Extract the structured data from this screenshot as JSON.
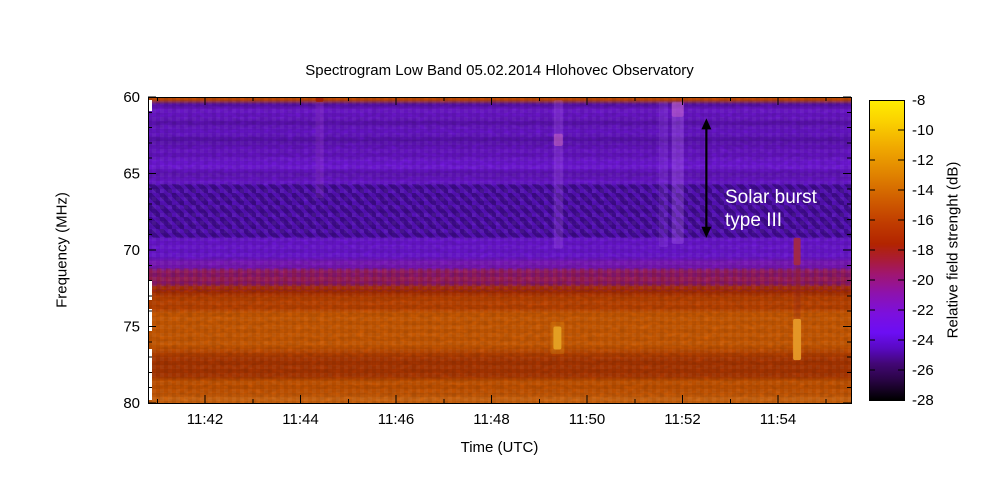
{
  "chart_data": {
    "type": "heatmap",
    "title": "Spectrogram Low Band 05.02.2014 Hlohovec Observatory",
    "xlabel": "Time (UTC)",
    "ylabel": "Frequency (MHz)",
    "colorbar_label": "Relative field strenght (dB)",
    "x_ticks": [
      "11:42",
      "11:44",
      "11:46",
      "11:48",
      "11:50",
      "11:52",
      "11:54"
    ],
    "x_minor_tick_minutes": 1,
    "x_range_utc": [
      "11:40.8",
      "11:55.5"
    ],
    "y_ticks": [
      "60",
      "65",
      "70",
      "75",
      "80"
    ],
    "y_minor_tick_mhz": 1,
    "y_range_mhz": [
      60,
      80
    ],
    "y_orientation": "60 MHz at top, 80 MHz at bottom",
    "colorbar_ticks": [
      "-8",
      "-10",
      "-12",
      "-14",
      "-16",
      "-18",
      "-20",
      "-22",
      "-24",
      "-26",
      "-28"
    ],
    "colorbar_range_db": [
      -8,
      -28
    ],
    "grid": false,
    "palette_stops": [
      [
        0.0,
        "#ffee00"
      ],
      [
        0.07,
        "#fbd200"
      ],
      [
        0.16,
        "#f0a800"
      ],
      [
        0.25,
        "#e08200"
      ],
      [
        0.33,
        "#d05e00"
      ],
      [
        0.41,
        "#c03c00"
      ],
      [
        0.48,
        "#b22400"
      ],
      [
        0.53,
        "#aa1c34"
      ],
      [
        0.58,
        "#a01670"
      ],
      [
        0.645,
        "#8d12ae"
      ],
      [
        0.71,
        "#7c10dc"
      ],
      [
        0.775,
        "#6c0ef4"
      ],
      [
        0.83,
        "#5809c0"
      ],
      [
        0.88,
        "#420774"
      ],
      [
        0.93,
        "#2b0448"
      ],
      [
        1.0,
        "#000000"
      ]
    ],
    "frequency_bands": [
      {
        "f0": 60.0,
        "f1": 60.32,
        "db": -15.5,
        "color": "#d05000"
      },
      {
        "f0": 60.32,
        "f1": 60.62,
        "db": -25.0,
        "color": "#5a10a8"
      },
      {
        "f0": 60.62,
        "f1": 61.4,
        "db": -22.7,
        "color": "#6f17d2"
      },
      {
        "f0": 61.4,
        "f1": 61.95,
        "db": -23.8,
        "color": "#6013b8"
      },
      {
        "f0": 61.95,
        "f1": 62.55,
        "db": -22.7,
        "color": "#6e17d6"
      },
      {
        "f0": 62.55,
        "f1": 63.15,
        "db": -24.0,
        "color": "#5c12b4"
      },
      {
        "f0": 63.15,
        "f1": 64.1,
        "db": -23.0,
        "color": "#6a15cc"
      },
      {
        "f0": 64.1,
        "f1": 64.8,
        "db": -22.3,
        "color": "#7419e0"
      },
      {
        "f0": 64.8,
        "f1": 65.25,
        "db": -23.8,
        "color": "#6013ba"
      },
      {
        "f0": 65.25,
        "f1": 65.7,
        "db": -22.6,
        "color": "#7018d8"
      },
      {
        "f0": 65.7,
        "f1": 69.2,
        "db": -24.8,
        "color": "#5c13c4"
      },
      {
        "f0": 69.2,
        "f1": 70.6,
        "db": -22.6,
        "color": "#6e17d8"
      },
      {
        "f0": 70.6,
        "f1": 71.3,
        "db": -21.8,
        "color": "#7e18c0"
      },
      {
        "f0": 71.3,
        "f1": 72.3,
        "db": -19.5,
        "color": "#9a1c64"
      },
      {
        "f0": 72.3,
        "f1": 73.0,
        "db": -17.3,
        "color": "#b23200"
      },
      {
        "f0": 73.0,
        "f1": 74.0,
        "db": -16.3,
        "color": "#c44600"
      },
      {
        "f0": 74.0,
        "f1": 76.4,
        "db": -14.9,
        "color": "#d35e03"
      },
      {
        "f0": 76.4,
        "f1": 77.0,
        "db": -16.2,
        "color": "#c24800"
      },
      {
        "f0": 77.0,
        "f1": 78.4,
        "db": -17.2,
        "color": "#b13800"
      },
      {
        "f0": 78.4,
        "f1": 79.4,
        "db": -15.6,
        "color": "#cc5600"
      },
      {
        "f0": 79.4,
        "f1": 80.0,
        "db": -14.6,
        "color": "#d8690f"
      }
    ],
    "interference_pattern_mhz": [
      65.7,
      69.2
    ],
    "mottled_transition_mhz": [
      71.2,
      72.7
    ],
    "events": [
      {
        "time": "11:44.4",
        "label": "faint interference streak",
        "features": [
          {
            "t": 2.4,
            "f0": 60.0,
            "f1": 60.32,
            "color": "#9e1c00",
            "alpha": 0.85,
            "w": 8
          },
          {
            "t": 2.4,
            "f0": 60.32,
            "f1": 66.6,
            "color": "#c864e6",
            "alpha": 0.15,
            "w": 8
          }
        ]
      },
      {
        "time": "11:49.4",
        "label": "interference burst",
        "features": [
          {
            "t": 7.4,
            "f0": 60.2,
            "f1": 69.9,
            "color": "#c87aff",
            "alpha": 0.2,
            "w": 9
          },
          {
            "t": 7.4,
            "f0": 62.4,
            "f1": 63.2,
            "color": "#e678be",
            "alpha": 0.4,
            "w": 9
          },
          {
            "t": 7.38,
            "f0": 74.7,
            "f1": 76.8,
            "color": "#d98a10",
            "alpha": 0.3,
            "w": 14
          },
          {
            "t": 7.38,
            "f0": 75.0,
            "f1": 76.5,
            "color": "#e6a224",
            "alpha": 0.95,
            "w": 8
          }
        ]
      },
      {
        "time": "11:51.8",
        "label": "solar burst type III",
        "features": [
          {
            "t": 9.6,
            "f0": 60.3,
            "f1": 69.8,
            "color": "#be82ff",
            "alpha": 0.14,
            "w": 9
          },
          {
            "t": 9.9,
            "f0": 60.3,
            "f1": 69.6,
            "color": "#cd8aff",
            "alpha": 0.24,
            "w": 12
          },
          {
            "t": 9.9,
            "f0": 60.35,
            "f1": 61.3,
            "color": "#e172c8",
            "alpha": 0.35,
            "w": 12
          }
        ]
      },
      {
        "time": "11:54.4",
        "label": "interference burst",
        "features": [
          {
            "t": 12.4,
            "f0": 69.2,
            "f1": 71.0,
            "color": "#a62a3c",
            "alpha": 0.9,
            "w": 7
          },
          {
            "t": 12.4,
            "f0": 71.0,
            "f1": 74.5,
            "color": "#96281e",
            "alpha": 0.25,
            "w": 7
          },
          {
            "t": 12.4,
            "f0": 74.5,
            "f1": 77.2,
            "color": "#e79a28",
            "alpha": 0.95,
            "w": 8
          }
        ]
      }
    ],
    "annotation": {
      "line1": "Solar burst",
      "line2": "type III",
      "color": "#ffffff",
      "arrow_time_utc": "11:52.5",
      "arrow_t": 10.5,
      "arrow_f0": 61.4,
      "arrow_f1": 69.2
    }
  }
}
